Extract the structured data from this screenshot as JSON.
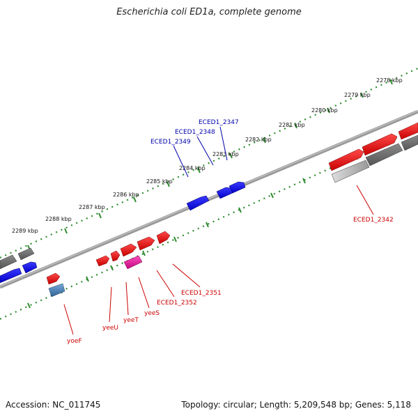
{
  "title": "Escherichia coli ED1a, complete genome",
  "footer": {
    "accession": "Accession: NC_011745",
    "summary": "Topology: circular; Length: 5,209,548 bp; Genes: 5,118"
  },
  "colors": {
    "forward_gene": "#ee0000",
    "reverse_gene": "#0000ee",
    "other_feature": "#666666",
    "forward_label": "#cc0000",
    "reverse_label": "#0000aa",
    "ruler": "#2e8b2e",
    "backbone": "#888888",
    "highlight_pink": "#e0139c",
    "highlight_steel": "#4a7fb5"
  },
  "ruler_ticks": [
    {
      "label": "2278 kbp"
    },
    {
      "label": "2279 kbp"
    },
    {
      "label": "2280 kbp"
    },
    {
      "label": "2281 kbp"
    },
    {
      "label": "2282 kbp"
    },
    {
      "label": "2283 kbp"
    },
    {
      "label": "2284 kbp"
    },
    {
      "label": "2285 kbp"
    },
    {
      "label": "2286 kbp"
    },
    {
      "label": "2287 kbp"
    },
    {
      "label": "2288 kbp"
    },
    {
      "label": "2289 kbp"
    }
  ],
  "gene_labels": {
    "top": [
      "ECED1_2347",
      "ECED1_2348",
      "ECED1_2349"
    ],
    "bottom": [
      "ECED1_2342",
      "ECED1_2351",
      "ECED1_2352",
      "yeeS",
      "yeeT",
      "yeeU",
      "yoeF"
    ]
  }
}
